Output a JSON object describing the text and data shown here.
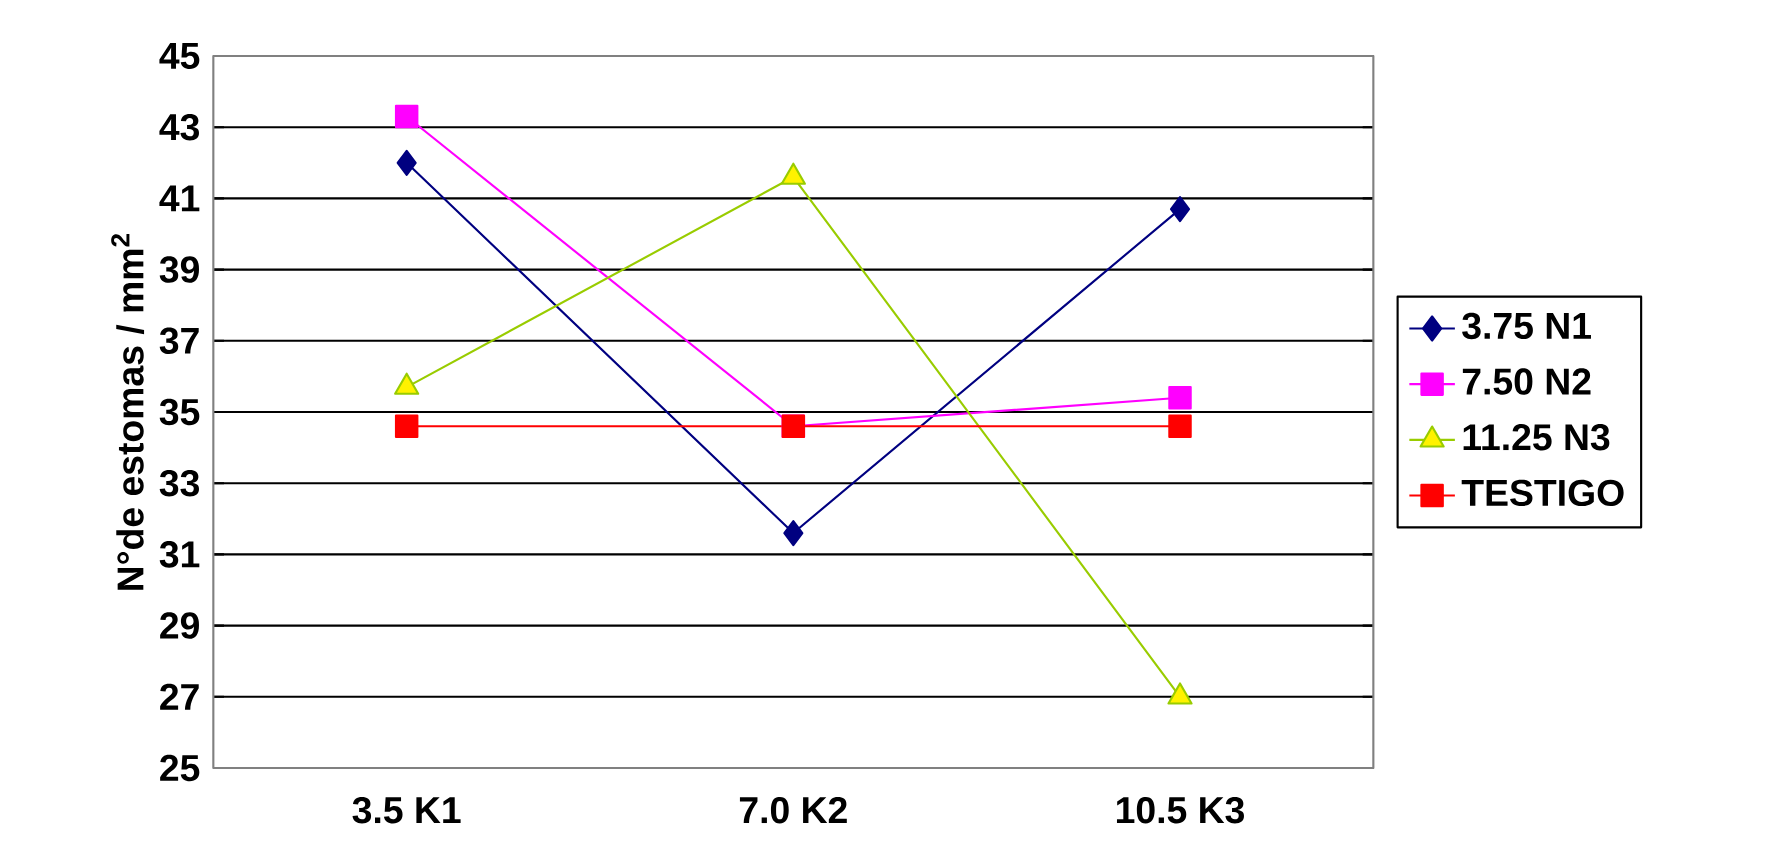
{
  "chart_data": {
    "type": "line",
    "ylabel": "N°de estomas / mm$^{2}$",
    "categories": [
      "3.5 K1",
      "7.0 K2",
      "10.5 K3"
    ],
    "series": [
      {
        "name": "3.75 N1",
        "color": "#000080",
        "marker": "diamond",
        "values": [
          42.0,
          31.6,
          40.7
        ]
      },
      {
        "name": "7.50 N2",
        "color": "#ff00ff",
        "marker": "square",
        "values": [
          43.3,
          34.6,
          35.4
        ]
      },
      {
        "name": "11.25 N3",
        "color": "#99cc00",
        "marker": "triangle",
        "values": [
          35.7,
          41.6,
          27.0
        ]
      },
      {
        "name": "TESTIGO",
        "color": "#ff0000",
        "marker": "square",
        "values": [
          34.6,
          34.6,
          34.6
        ]
      }
    ],
    "ylim": [
      25,
      45
    ],
    "yticks": [
      25,
      27,
      29,
      31,
      33,
      35,
      37,
      39,
      41,
      43,
      45
    ],
    "grid": "y",
    "legend": "right",
    "line_style": "solid"
  }
}
